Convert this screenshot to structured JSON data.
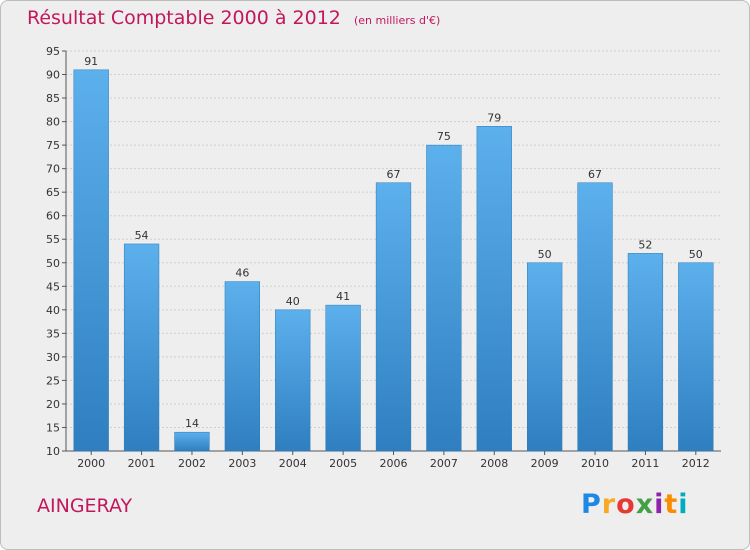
{
  "chart_data": {
    "type": "bar",
    "title": "Résultat Comptable 2000 à 2012",
    "subtitle": "(en milliers d'€)",
    "categories": [
      "2000",
      "2001",
      "2002",
      "2003",
      "2004",
      "2005",
      "2006",
      "2007",
      "2008",
      "2009",
      "2010",
      "2011",
      "2012"
    ],
    "values": [
      91,
      54,
      14,
      46,
      40,
      41,
      67,
      75,
      79,
      50,
      67,
      52,
      50
    ],
    "ylim": [
      10,
      95
    ],
    "yticks": [
      10,
      15,
      20,
      25,
      30,
      35,
      40,
      45,
      50,
      55,
      60,
      65,
      70,
      75,
      80,
      85,
      90,
      95
    ],
    "xlabel": "",
    "ylabel": "",
    "grid": true,
    "bar_color": "#4a9fdf"
  },
  "commune": "AINGERAY",
  "brand": {
    "letters": [
      "P",
      "r",
      "o",
      "x",
      "i",
      "t",
      "i"
    ]
  }
}
